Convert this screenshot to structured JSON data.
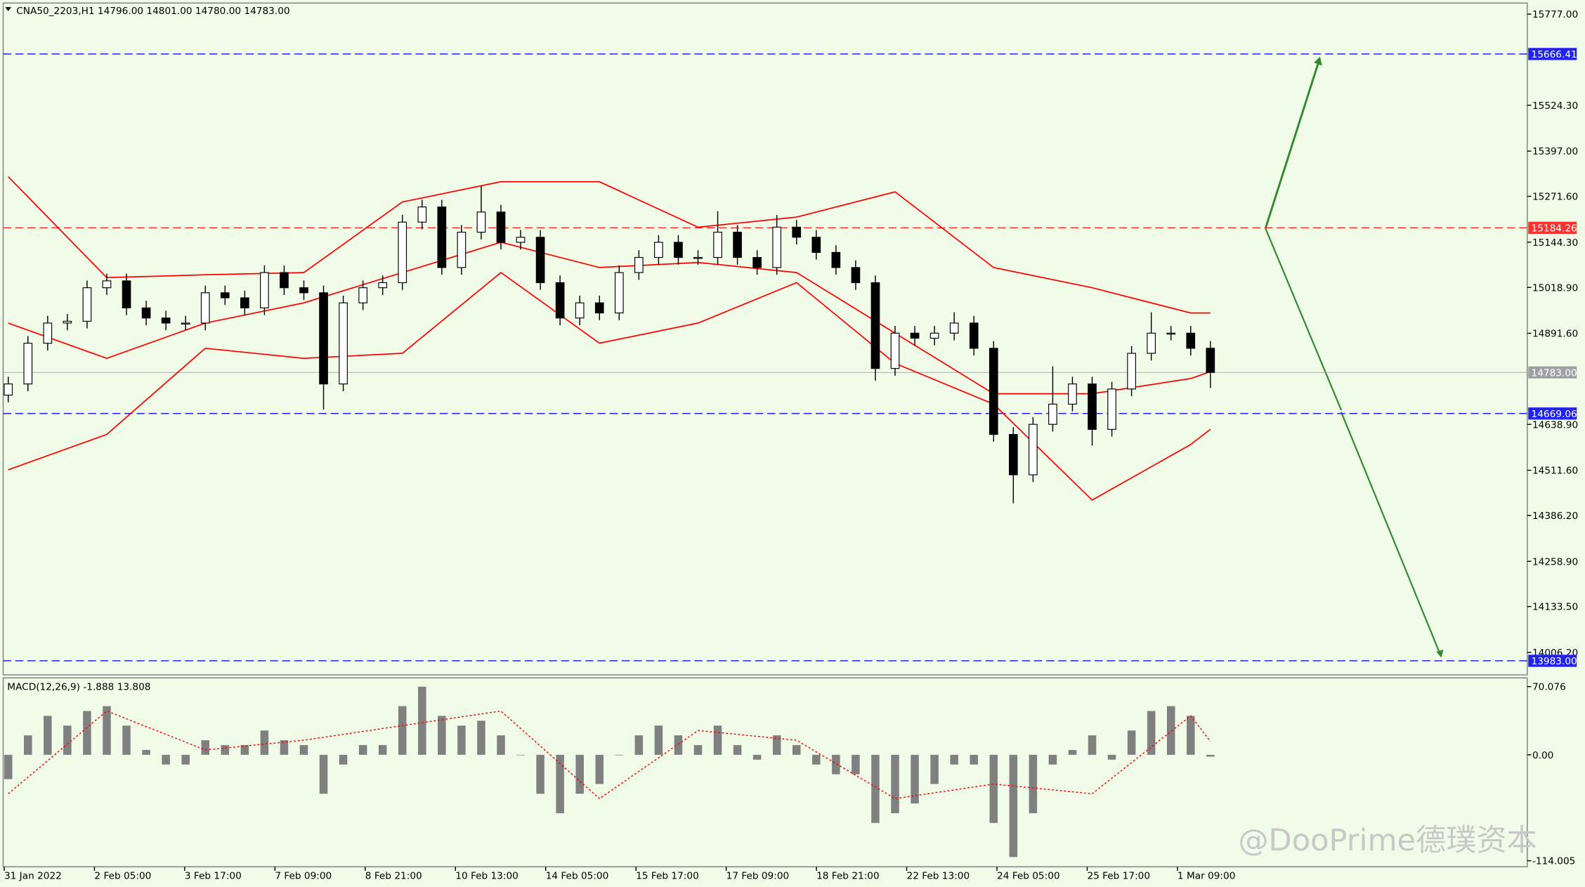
{
  "chart_data": {
    "type": "candlestick",
    "header": "CNA50_2203,H1  14796.00 14801.00 14780.00 14783.00",
    "ylim": [
      13944,
      15805
    ],
    "yticks": [
      {
        "value": 15777,
        "label": "15777.00"
      },
      {
        "value": 15524.3,
        "label": "15524.30"
      },
      {
        "value": 15397,
        "label": "15397.00"
      },
      {
        "value": 15271.6,
        "label": "15271.60"
      },
      {
        "value": 15144.3,
        "label": "15144.30"
      },
      {
        "value": 15018.9,
        "label": "15018.90"
      },
      {
        "value": 14891.6,
        "label": "14891.60"
      },
      {
        "value": 14638.9,
        "label": "14638.90"
      },
      {
        "value": 14511.6,
        "label": "14511.60"
      },
      {
        "value": 14386.2,
        "label": "14386.20"
      },
      {
        "value": 14258.9,
        "label": "14258.90"
      },
      {
        "value": 14133.5,
        "label": "14133.50"
      },
      {
        "value": 14006.2,
        "label": "14006.20"
      }
    ],
    "x_labels": [
      "31 Jan 2022",
      "2 Feb 05:00",
      "3 Feb 17:00",
      "7 Feb 09:00",
      "8 Feb 21:00",
      "10 Feb 13:00",
      "14 Feb 05:00",
      "15 Feb 17:00",
      "17 Feb 09:00",
      "18 Feb 21:00",
      "22 Feb 13:00",
      "24 Feb 05:00",
      "25 Feb 17:00",
      "1 Mar 09:00"
    ],
    "open": [
      14720,
      14751,
      14864,
      14920,
      14925,
      15018,
      15037,
      14962,
      14934,
      14920,
      14920,
      15004,
      14990,
      14962,
      15060,
      15018,
      15004,
      14751,
      14976,
      15018,
      15032,
      15200,
      15242,
      15074,
      15172,
      15228,
      15144,
      15158,
      15032,
      14934,
      14976,
      14948,
      15060,
      15102,
      15144,
      15102,
      15102,
      15172,
      15102,
      15074,
      15186,
      15158,
      15116,
      15074,
      15032,
      14794,
      14892,
      14878,
      14892,
      14920,
      14850,
      14611,
      14499,
      14639,
      14695,
      14751,
      14625,
      14737,
      14836,
      14892,
      14892,
      14850
    ],
    "high": [
      14771,
      14884,
      14940,
      14945,
      15038,
      15057,
      15057,
      14982,
      14954,
      14940,
      15024,
      15024,
      15010,
      15080,
      15080,
      15038,
      15024,
      14996,
      15038,
      15052,
      15220,
      15262,
      15262,
      15192,
      15300,
      15248,
      15178,
      15178,
      15052,
      14996,
      14996,
      15080,
      15122,
      15164,
      15164,
      15122,
      15230,
      15192,
      15122,
      15220,
      15206,
      15178,
      15136,
      15094,
      15052,
      14912,
      14912,
      14912,
      14950,
      14940,
      14870,
      14631,
      14659,
      14800,
      14771,
      14771,
      14757,
      14856,
      14950,
      14912,
      14912,
      14870
    ],
    "low": [
      14700,
      14731,
      14844,
      14900,
      14905,
      14998,
      14942,
      14914,
      14900,
      14900,
      14900,
      14970,
      14942,
      14942,
      14998,
      14984,
      14680,
      14731,
      14956,
      14998,
      15012,
      15180,
      15054,
      15054,
      15152,
      15124,
      15124,
      15012,
      14914,
      14914,
      14928,
      14928,
      15040,
      15082,
      15082,
      15082,
      15082,
      15082,
      15054,
      15054,
      15138,
      15096,
      15054,
      15012,
      14760,
      14774,
      14858,
      14858,
      14872,
      14830,
      14591,
      14420,
      14479,
      14619,
      14675,
      14580,
      14605,
      14717,
      14816,
      14872,
      14830,
      14740
    ],
    "close": [
      14751,
      14864,
      14920,
      14925,
      15018,
      15037,
      14962,
      14934,
      14920,
      14920,
      15004,
      14990,
      14962,
      15060,
      15018,
      15004,
      14751,
      14976,
      15018,
      15032,
      15200,
      15242,
      15074,
      15172,
      15228,
      15144,
      15158,
      15032,
      14934,
      14976,
      14948,
      15060,
      15102,
      15144,
      15102,
      15102,
      15172,
      15102,
      15074,
      15186,
      15158,
      15116,
      15074,
      15032,
      14794,
      14892,
      14878,
      14892,
      14920,
      14850,
      14611,
      14499,
      14639,
      14695,
      14751,
      14625,
      14737,
      14836,
      14892,
      14892,
      14850,
      14783
    ],
    "bands_x": [
      0,
      5,
      10,
      15,
      20,
      25,
      30,
      35,
      40,
      45,
      50,
      55,
      60,
      61
    ],
    "bands": [
      {
        "color": "#ff0000",
        "values": [
          15326,
          15046,
          15054,
          15060,
          15256,
          15312,
          15312,
          15186,
          15214,
          15284,
          15074,
          15018,
          14948,
          14948
        ]
      },
      {
        "color": "#ff0000",
        "values": [
          14920,
          14822,
          14920,
          14976,
          15060,
          15144,
          15074,
          15088,
          15060,
          14892,
          14724,
          14724,
          14766,
          14785
        ]
      },
      {
        "color": "#ff0000",
        "values": [
          14513,
          14611,
          14850,
          14822,
          14836,
          15060,
          14864,
          14920,
          15032,
          14808,
          14695,
          14429,
          14583,
          14625
        ]
      }
    ],
    "levels": [
      {
        "value": 15666.41,
        "color": "#2222ee"
      },
      {
        "value": 15184.26,
        "color": "#ff3030"
      },
      {
        "value": 14783,
        "label": "14783.00",
        "color": "#a0a0a0"
      },
      {
        "value": 14669.06,
        "color": "#2222ee"
      },
      {
        "value": 13983,
        "label": "13983.00",
        "color": "#2222ee"
      }
    ],
    "macd": {
      "title": "MACD(12,26,9) -1.888 13.808",
      "ylim": [
        -114.005,
        78
      ],
      "yticks": [
        70.076,
        {
          "value": 0,
          "label": "0.00"
        },
        -114.005
      ],
      "hist_color": "#808080",
      "histogram": [
        -25,
        20,
        40,
        30,
        45,
        50,
        30,
        5,
        -10,
        -10,
        15,
        10,
        10,
        25,
        15,
        10,
        -40,
        -10,
        10,
        10,
        50,
        70,
        40,
        30,
        35,
        20,
        0,
        -40,
        -60,
        -40,
        -30,
        0,
        20,
        30,
        20,
        10,
        30,
        10,
        -5,
        20,
        10,
        -10,
        -20,
        -20,
        -70,
        -60,
        -50,
        -30,
        -10,
        -10,
        -70,
        -105,
        -60,
        -10,
        5,
        20,
        -5,
        25,
        45,
        50,
        40,
        -1.888
      ],
      "signal_color": "#ff0000",
      "signal": [
        -40,
        45,
        5,
        15,
        30,
        45,
        -45,
        25,
        15,
        -45,
        -30,
        -40,
        40,
        13.808
      ]
    },
    "watermark": "@DooPrime德璞资本"
  }
}
